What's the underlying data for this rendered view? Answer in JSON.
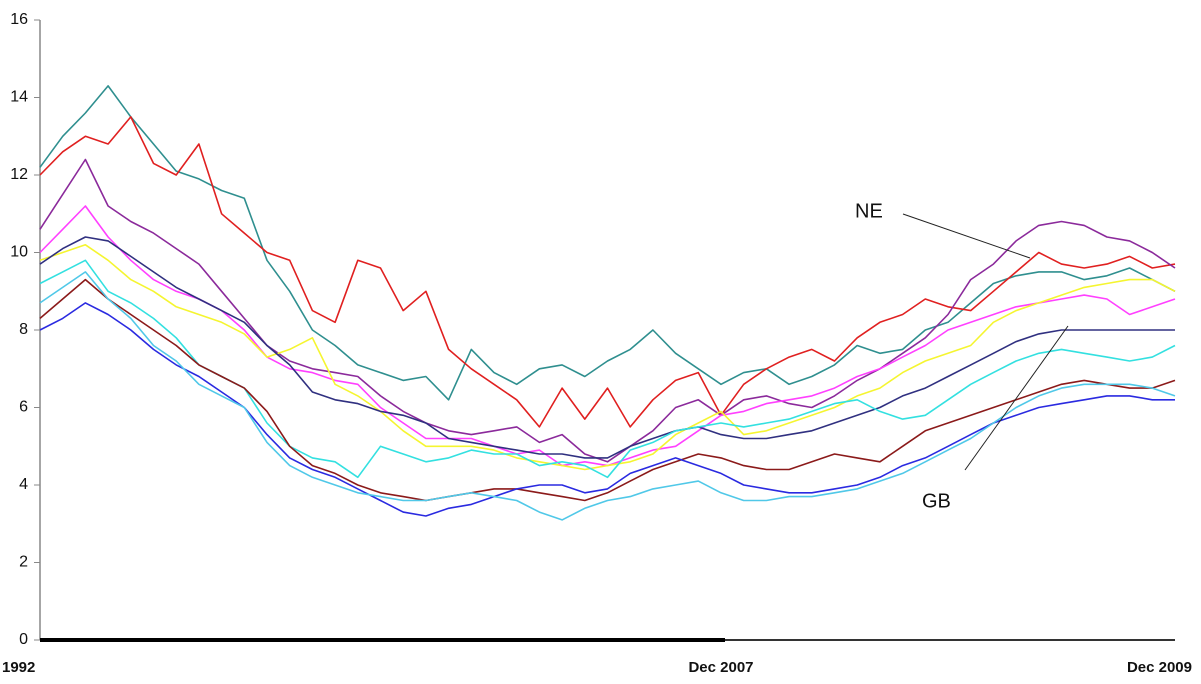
{
  "chart_data": {
    "type": "line",
    "x": [
      "1992",
      null,
      null,
      null,
      null,
      null,
      null,
      null,
      null,
      null,
      null,
      null,
      null,
      null,
      null,
      null,
      null,
      null,
      null,
      null,
      null,
      null,
      null,
      null,
      null,
      null,
      null,
      null,
      null,
      null,
      "Dec 2007",
      null,
      null,
      null,
      null,
      null,
      null,
      null,
      null,
      null,
      null,
      null,
      null,
      null,
      null,
      null,
      null,
      null,
      null,
      null,
      "Dec 2009"
    ],
    "ylim": [
      0,
      16
    ],
    "yticks": [
      0,
      2,
      4,
      6,
      8,
      10,
      12,
      14,
      16
    ],
    "annotations": [
      "NE",
      "GB"
    ],
    "series": [
      {
        "color": "#2f8f8f",
        "values": [
          12.2,
          13.0,
          13.6,
          14.3,
          13.5,
          12.8,
          12.1,
          11.9,
          11.6,
          11.4,
          9.8,
          9.0,
          8.0,
          7.6,
          7.1,
          6.9,
          6.7,
          6.8,
          6.2,
          7.5,
          6.9,
          6.6,
          7.0,
          7.1,
          6.8,
          7.2,
          7.5,
          8.0,
          7.4,
          7.0,
          6.6,
          6.9,
          7.0,
          6.6,
          6.8,
          7.1,
          7.6,
          7.4,
          7.5,
          8.0,
          8.2,
          8.7,
          9.2,
          9.4,
          9.5,
          9.5,
          9.3,
          9.4,
          9.6,
          9.3,
          9.0
        ]
      },
      {
        "color": "#e02020",
        "values": [
          12.0,
          12.6,
          13.0,
          12.8,
          13.5,
          12.3,
          12.0,
          12.8,
          11.0,
          10.5,
          10.0,
          9.8,
          8.5,
          8.2,
          9.8,
          9.6,
          8.5,
          9.0,
          7.5,
          7.0,
          6.6,
          6.2,
          5.5,
          6.5,
          5.7,
          6.5,
          5.5,
          6.2,
          6.7,
          6.9,
          5.8,
          6.6,
          7.0,
          7.3,
          7.5,
          7.2,
          7.8,
          8.2,
          8.4,
          8.8,
          8.6,
          8.5,
          9.0,
          9.5,
          10.0,
          9.7,
          9.6,
          9.7,
          9.9,
          9.6,
          9.7
        ]
      },
      {
        "color": "#8b2a9b",
        "values": [
          10.6,
          11.5,
          12.4,
          11.2,
          10.8,
          10.5,
          10.1,
          9.7,
          9.0,
          8.3,
          7.6,
          7.2,
          7.0,
          6.9,
          6.8,
          6.3,
          5.9,
          5.6,
          5.4,
          5.3,
          5.4,
          5.5,
          5.1,
          5.3,
          4.8,
          4.6,
          5.0,
          5.4,
          6.0,
          6.2,
          5.8,
          6.2,
          6.3,
          6.1,
          6.0,
          6.3,
          6.7,
          7.0,
          7.4,
          7.8,
          8.4,
          9.3,
          9.7,
          10.3,
          10.7,
          10.8,
          10.7,
          10.4,
          10.3,
          10.0,
          9.6
        ]
      },
      {
        "color": "#ff40ff",
        "values": [
          10.0,
          10.6,
          11.2,
          10.4,
          9.8,
          9.3,
          9.0,
          8.8,
          8.5,
          8.0,
          7.3,
          7.0,
          6.9,
          6.7,
          6.6,
          6.0,
          5.6,
          5.2,
          5.2,
          5.2,
          5.0,
          4.8,
          4.9,
          4.5,
          4.6,
          4.5,
          4.7,
          4.9,
          5.0,
          5.4,
          5.8,
          5.9,
          6.1,
          6.2,
          6.3,
          6.5,
          6.8,
          7.0,
          7.3,
          7.6,
          8.0,
          8.2,
          8.4,
          8.6,
          8.7,
          8.8,
          8.9,
          8.8,
          8.4,
          8.6,
          8.8
        ]
      },
      {
        "color": "#f5f530",
        "values": [
          9.8,
          10.0,
          10.2,
          9.8,
          9.3,
          9.0,
          8.6,
          8.4,
          8.2,
          7.9,
          7.3,
          7.5,
          7.8,
          6.6,
          6.3,
          5.9,
          5.4,
          5.0,
          5.0,
          5.0,
          4.9,
          4.7,
          4.6,
          4.5,
          4.4,
          4.5,
          4.6,
          4.8,
          5.3,
          5.6,
          5.9,
          5.3,
          5.4,
          5.6,
          5.8,
          6.0,
          6.3,
          6.5,
          6.9,
          7.2,
          7.4,
          7.6,
          8.2,
          8.5,
          8.7,
          8.9,
          9.1,
          9.2,
          9.3,
          9.3,
          9.0
        ]
      },
      {
        "color": "#303080",
        "values": [
          9.7,
          10.1,
          10.4,
          10.3,
          9.9,
          9.5,
          9.1,
          8.8,
          8.5,
          8.2,
          7.6,
          7.1,
          6.4,
          6.2,
          6.1,
          5.9,
          5.8,
          5.6,
          5.2,
          5.1,
          5.0,
          4.9,
          4.8,
          4.8,
          4.7,
          4.7,
          5.0,
          5.2,
          5.4,
          5.5,
          5.3,
          5.2,
          5.2,
          5.3,
          5.4,
          5.6,
          5.8,
          6.0,
          6.3,
          6.5,
          6.8,
          7.1,
          7.4,
          7.7,
          7.9,
          8.0,
          8.0,
          8.0,
          8.0,
          8.0,
          8.0
        ]
      },
      {
        "color": "#33e0e0",
        "values": [
          9.2,
          9.5,
          9.8,
          9.0,
          8.7,
          8.3,
          7.8,
          7.1,
          6.8,
          6.5,
          5.6,
          5.0,
          4.7,
          4.6,
          4.2,
          5.0,
          4.8,
          4.6,
          4.7,
          4.9,
          4.8,
          4.8,
          4.5,
          4.6,
          4.5,
          4.2,
          4.9,
          5.1,
          5.4,
          5.5,
          5.6,
          5.5,
          5.6,
          5.7,
          5.9,
          6.1,
          6.2,
          5.9,
          5.7,
          5.8,
          6.2,
          6.6,
          6.9,
          7.2,
          7.4,
          7.5,
          7.4,
          7.3,
          7.2,
          7.3,
          7.6
        ]
      },
      {
        "color": "#8b1a1a",
        "values": [
          8.3,
          8.8,
          9.3,
          8.8,
          8.4,
          8.0,
          7.6,
          7.1,
          6.8,
          6.5,
          5.9,
          5.0,
          4.5,
          4.3,
          4.0,
          3.8,
          3.7,
          3.6,
          3.7,
          3.8,
          3.9,
          3.9,
          3.8,
          3.7,
          3.6,
          3.8,
          4.1,
          4.4,
          4.6,
          4.8,
          4.7,
          4.5,
          4.4,
          4.4,
          4.6,
          4.8,
          4.7,
          4.6,
          5.0,
          5.4,
          5.6,
          5.8,
          6.0,
          6.2,
          6.4,
          6.6,
          6.7,
          6.6,
          6.5,
          6.5,
          6.7
        ]
      },
      {
        "color": "#2a2ae0",
        "values": [
          8.0,
          8.3,
          8.7,
          8.4,
          8.0,
          7.5,
          7.1,
          6.8,
          6.4,
          6.0,
          5.3,
          4.7,
          4.4,
          4.2,
          3.9,
          3.6,
          3.3,
          3.2,
          3.4,
          3.5,
          3.7,
          3.9,
          4.0,
          4.0,
          3.8,
          3.9,
          4.3,
          4.5,
          4.7,
          4.5,
          4.3,
          4.0,
          3.9,
          3.8,
          3.8,
          3.9,
          4.0,
          4.2,
          4.5,
          4.7,
          5.0,
          5.3,
          5.6,
          5.8,
          6.0,
          6.1,
          6.2,
          6.3,
          6.3,
          6.2,
          6.2
        ]
      },
      {
        "color": "#50c8e8",
        "values": [
          8.7,
          9.1,
          9.5,
          8.8,
          8.3,
          7.6,
          7.2,
          6.6,
          6.3,
          6.0,
          5.1,
          4.5,
          4.2,
          4.0,
          3.8,
          3.7,
          3.6,
          3.6,
          3.7,
          3.8,
          3.7,
          3.6,
          3.3,
          3.1,
          3.4,
          3.6,
          3.7,
          3.9,
          4.0,
          4.1,
          3.8,
          3.6,
          3.6,
          3.7,
          3.7,
          3.8,
          3.9,
          4.1,
          4.3,
          4.6,
          4.9,
          5.2,
          5.6,
          6.0,
          6.3,
          6.5,
          6.6,
          6.6,
          6.6,
          6.5,
          6.3
        ]
      }
    ]
  }
}
